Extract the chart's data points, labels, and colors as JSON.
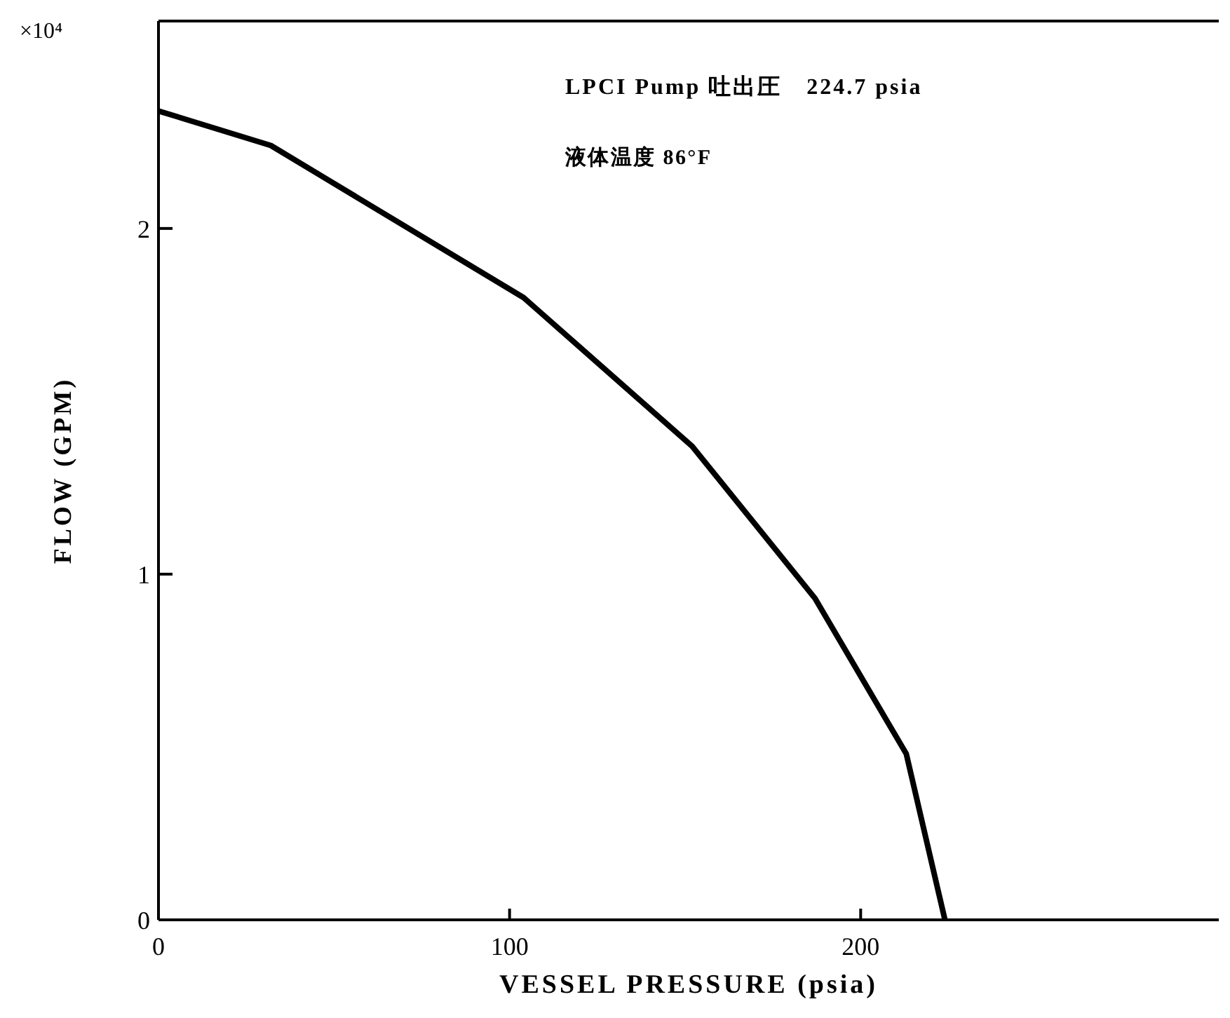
{
  "chart_data": {
    "type": "line",
    "xlabel": "VESSEL PRESSURE (psia)",
    "ylabel": "FLOW (GPM)",
    "x": [
      0,
      32,
      104,
      152,
      187,
      213,
      224
    ],
    "series": [
      {
        "color": "#000000",
        "values": [
          2.34,
          2.24,
          1.8,
          1.37,
          0.93,
          0.48,
          0
        ]
      }
    ],
    "xlim": [
      0,
      302
    ],
    "xticks": [
      0,
      100,
      200
    ],
    "ylim": [
      0,
      2.6
    ],
    "yticks": [
      0,
      1,
      2
    ],
    "grid": false,
    "marker": "none",
    "line_style": "solid",
    "annotations": [
      "×10⁴",
      "LPCI Pump 吐出圧　224.7 psia",
      "液体温度 86°F"
    ]
  }
}
